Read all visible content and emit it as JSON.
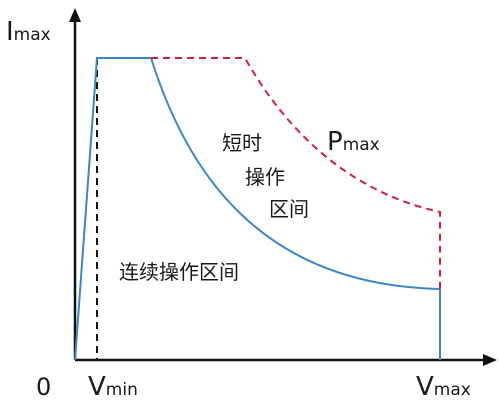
{
  "axes": {
    "y_label_main": "I",
    "y_label_sub": "max",
    "origin_label": "0",
    "vmin_main": "V",
    "vmin_sub": "min",
    "vmax_main": "V",
    "vmax_sub": "max"
  },
  "regions": {
    "short_term_line1": "短时",
    "short_term_line2": "操作",
    "short_term_line3": "区间",
    "pmax_main": "P",
    "pmax_sub": "max",
    "continuous": "连续操作区间"
  },
  "colors": {
    "axis": "#111111",
    "continuous_boundary": "#3a86c8",
    "short_term_boundary": "#d21f3c",
    "vmin_dashed": "#111111"
  }
}
